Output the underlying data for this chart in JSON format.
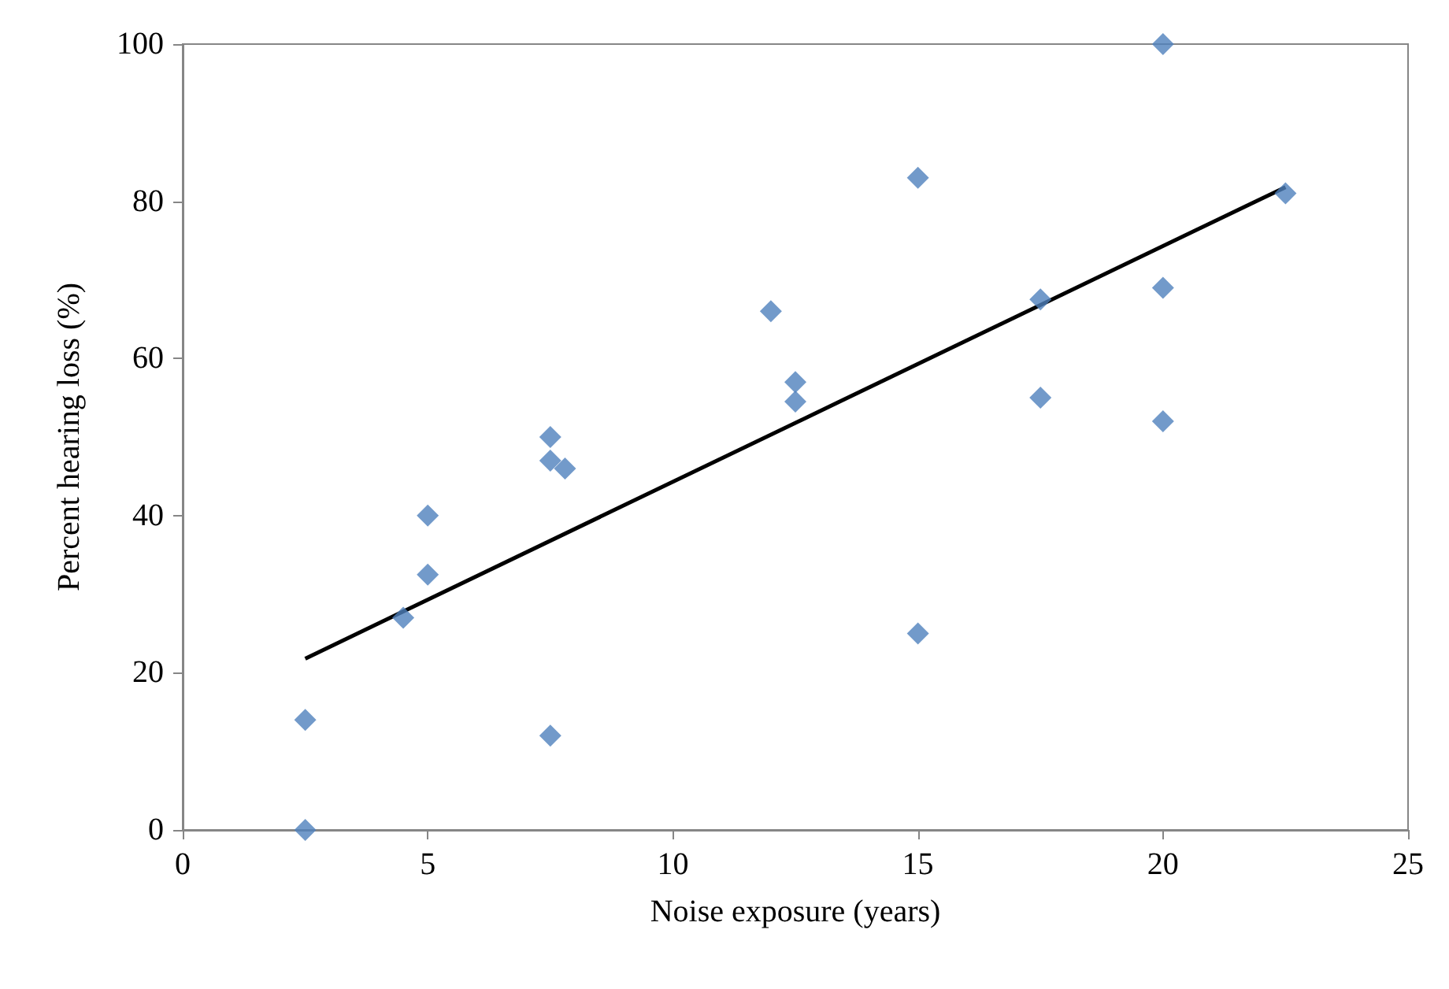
{
  "chart_data": {
    "type": "scatter",
    "xlabel": "Noise exposure (years)",
    "ylabel": "Percent hearing loss (%)",
    "xlim": [
      0,
      25
    ],
    "xticks": [
      0,
      5,
      10,
      15,
      20,
      25
    ],
    "ylim": [
      0,
      100
    ],
    "yticks": [
      0,
      20,
      40,
      60,
      80,
      100
    ],
    "grid": false,
    "marker": "diamond",
    "series": [
      {
        "color": "#4f81bd",
        "x": [
          2.5,
          2.5,
          4.5,
          5,
          5,
          7.5,
          7.5,
          7.8,
          7.5,
          12,
          12.5,
          12.5,
          15,
          15,
          17.5,
          17.5,
          20,
          20,
          20,
          22.5
        ],
        "values": [
          14,
          0,
          27,
          40,
          32.5,
          50,
          47,
          46,
          12,
          66,
          57,
          54.5,
          83,
          25,
          67.5,
          55,
          100,
          69,
          52,
          81
        ]
      },
      {
        "type": "line",
        "color": "#000000",
        "x": [
          2.5,
          22.5
        ],
        "values": [
          21.8,
          81.8
        ],
        "marker": "none",
        "line_style": "solid"
      }
    ]
  }
}
